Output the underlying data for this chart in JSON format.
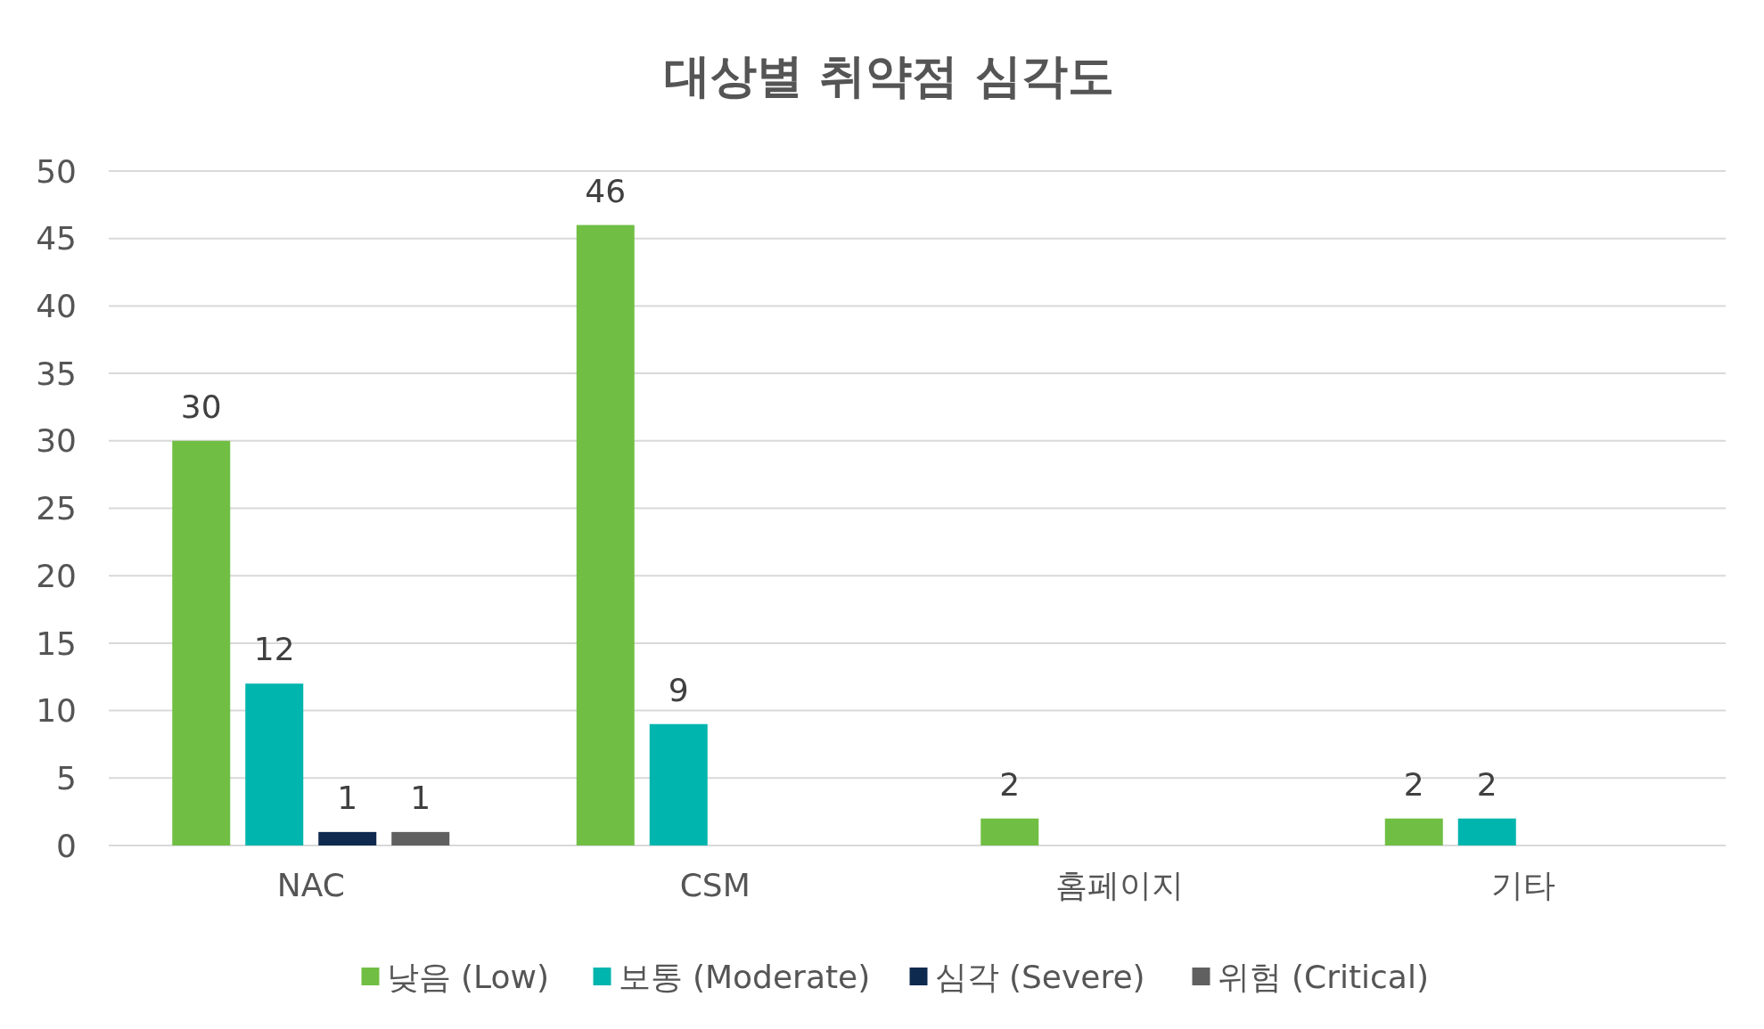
{
  "chart_data": {
    "type": "bar",
    "title": "대상별 취약점 심각도",
    "categories": [
      "NAC",
      "CSM",
      "홈페이지",
      "기타"
    ],
    "series": [
      {
        "name": "낮음 (Low)",
        "color": "#70bf44",
        "values": [
          30,
          46,
          2,
          2
        ]
      },
      {
        "name": "보통 (Moderate)",
        "color": "#00b5ad",
        "values": [
          12,
          9,
          null,
          2
        ]
      },
      {
        "name": "심각 (Severe)",
        "color": "#0f2a4f",
        "values": [
          1,
          null,
          null,
          null
        ]
      },
      {
        "name": "위험 (Critical)",
        "color": "#606060",
        "values": [
          1,
          null,
          null,
          null
        ]
      }
    ],
    "ylim": [
      0,
      50
    ],
    "yticks": [
      0,
      5,
      10,
      15,
      20,
      25,
      30,
      35,
      40,
      45,
      50
    ],
    "grid": "y",
    "legend": "bottom",
    "data_labels": true
  }
}
